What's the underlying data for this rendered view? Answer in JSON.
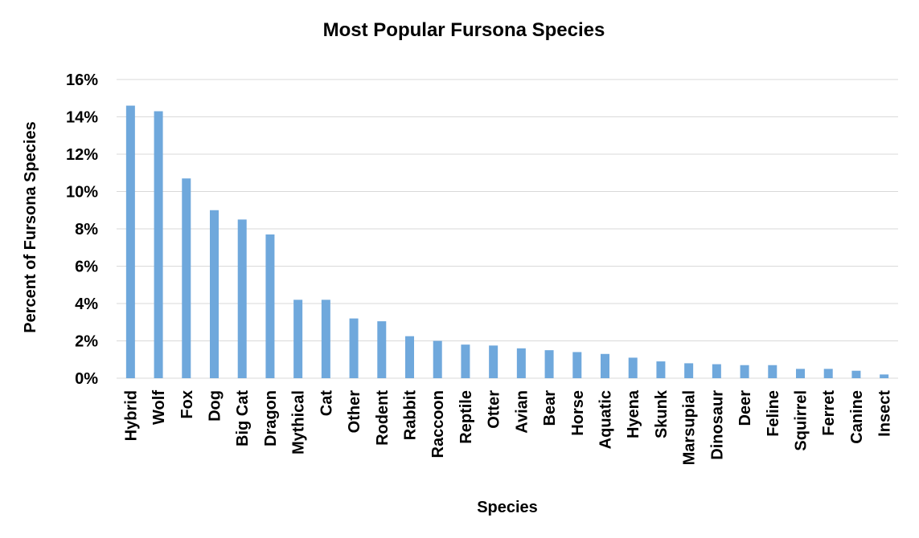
{
  "chart_data": {
    "type": "bar",
    "title": "Most Popular Fursona Species",
    "xlabel": "Species",
    "ylabel": "Percent of Fursona Species",
    "ylim": [
      0,
      16
    ],
    "yticks": [
      "0%",
      "2%",
      "4%",
      "6%",
      "8%",
      "10%",
      "12%",
      "14%",
      "16%"
    ],
    "grid": true,
    "bar_color": "#6fa8dc",
    "categories": [
      "Hybrid",
      "Wolf",
      "Fox",
      "Dog",
      "Big Cat",
      "Dragon",
      "Mythical",
      "Cat",
      "Other",
      "Rodent",
      "Rabbit",
      "Raccoon",
      "Reptile",
      "Otter",
      "Avian",
      "Bear",
      "Horse",
      "Aquatic",
      "Hyena",
      "Skunk",
      "Marsupial",
      "Dinosaur",
      "Deer",
      "Feline",
      "Squirrel",
      "Ferret",
      "Canine",
      "Insect"
    ],
    "values": [
      14.6,
      14.3,
      10.7,
      9.0,
      8.5,
      7.7,
      4.2,
      4.2,
      3.2,
      3.05,
      2.25,
      2.0,
      1.8,
      1.75,
      1.6,
      1.5,
      1.4,
      1.3,
      1.1,
      0.9,
      0.8,
      0.75,
      0.7,
      0.7,
      0.5,
      0.5,
      0.4,
      0.2
    ]
  }
}
